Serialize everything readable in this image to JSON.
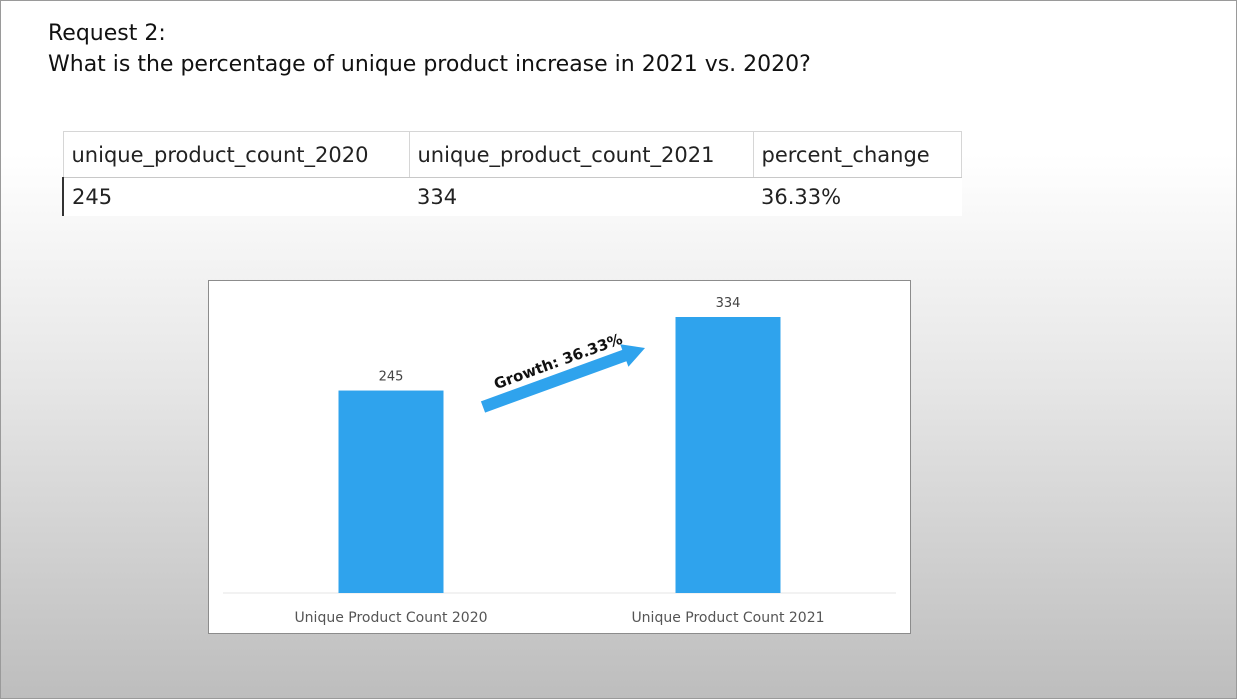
{
  "slide": {
    "title_line1": "Request 2:",
    "title_line2": "What is the percentage of unique product increase in 2021 vs. 2020?"
  },
  "table": {
    "headers": [
      "unique_product_count_2020",
      "unique_product_count_2021",
      "percent_change"
    ],
    "row": [
      "245",
      "334",
      "36.33%"
    ]
  },
  "chart_data": {
    "type": "bar",
    "categories": [
      "Unique Product Count 2020",
      "Unique Product Count 2021"
    ],
    "values": [
      245,
      334
    ],
    "data_labels": [
      "245",
      "334"
    ],
    "annotation": "Growth: 36.33%",
    "ylim": [
      0,
      350
    ],
    "grid": false,
    "bar_color": "#2fa3ed",
    "arrow_color": "#2fa3ed"
  }
}
